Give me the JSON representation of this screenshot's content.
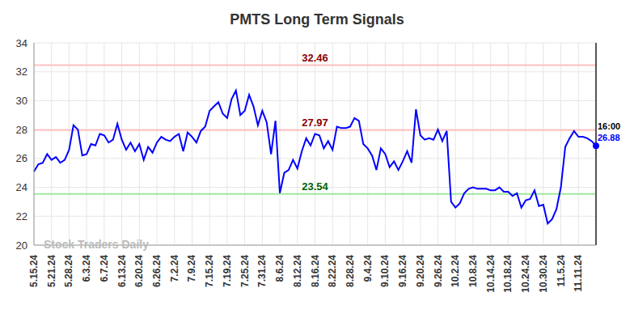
{
  "chart_data": {
    "type": "line",
    "title": "PMTS Long Term Signals",
    "watermark": "Stock Traders Daily",
    "time_label": "16:00",
    "color": "#0000ff",
    "grid": true,
    "ylim": [
      20,
      34
    ],
    "yticks": [
      20,
      22,
      24,
      26,
      28,
      30,
      32,
      34
    ],
    "levels": [
      {
        "value": 32.46,
        "color": "#ffc0c0"
      },
      {
        "value": 27.97,
        "color": "#ffc0c0"
      },
      {
        "value": 23.54,
        "color": "#a0e8a0"
      }
    ],
    "categories": [
      "5.15.24",
      null,
      null,
      null,
      "5.21.24",
      null,
      null,
      null,
      "5.28.24",
      null,
      null,
      null,
      "6.3.24",
      null,
      null,
      null,
      "6.7.24",
      null,
      null,
      null,
      "6.13.24",
      null,
      null,
      null,
      "6.20.24",
      null,
      null,
      null,
      "6.26.24",
      null,
      null,
      null,
      "7.2.24",
      null,
      null,
      null,
      "7.9.24",
      null,
      null,
      null,
      "7.15.24",
      null,
      null,
      null,
      "7.19.24",
      null,
      null,
      null,
      "7.25.24",
      null,
      null,
      null,
      "7.31.24",
      null,
      null,
      null,
      "8.6.24",
      null,
      null,
      null,
      "8.12.24",
      null,
      null,
      null,
      "8.16.24",
      null,
      null,
      null,
      "8.22.24",
      null,
      null,
      null,
      "8.28.24",
      null,
      null,
      null,
      "9.4.24",
      null,
      null,
      null,
      "9.10.24",
      null,
      null,
      null,
      "9.16.24",
      null,
      null,
      null,
      "9.20.24",
      null,
      null,
      null,
      "9.26.24",
      null,
      null,
      null,
      "10.2.24",
      null,
      null,
      null,
      "10.8.24",
      null,
      null,
      null,
      "10.14.24",
      null,
      null,
      null,
      "10.18.24",
      null,
      null,
      null,
      "10.24.24",
      null,
      null,
      null,
      "10.30.24",
      null,
      null,
      null,
      "11.5.24",
      null,
      null,
      null,
      "11.11.24",
      null,
      null,
      null,
      null
    ],
    "values": [
      25.1,
      25.6,
      25.7,
      26.3,
      25.9,
      26.1,
      25.7,
      25.9,
      26.6,
      28.3,
      28.0,
      26.2,
      26.3,
      27.0,
      26.9,
      27.7,
      27.6,
      27.1,
      27.3,
      28.4,
      27.3,
      26.6,
      27.1,
      26.5,
      27.0,
      25.9,
      26.8,
      26.4,
      27.1,
      27.5,
      27.3,
      27.2,
      27.5,
      27.7,
      26.5,
      27.8,
      27.5,
      27.1,
      27.9,
      28.2,
      29.3,
      29.6,
      29.9,
      29.1,
      28.8,
      30.1,
      30.7,
      29.0,
      29.3,
      30.4,
      29.6,
      28.3,
      29.3,
      28.5,
      26.3,
      28.6,
      23.6,
      25.0,
      25.2,
      25.9,
      25.3,
      26.5,
      27.4,
      26.9,
      27.7,
      27.6,
      26.7,
      27.2,
      26.6,
      28.2,
      28.1,
      28.1,
      28.2,
      28.8,
      28.6,
      27.0,
      26.7,
      26.2,
      25.2,
      26.7,
      26.3,
      25.4,
      25.8,
      25.2,
      25.8,
      26.5,
      25.7,
      29.4,
      27.6,
      27.3,
      27.4,
      27.3,
      28.0,
      27.2,
      27.9,
      23.0,
      22.6,
      22.9,
      23.6,
      23.9,
      24.0,
      23.9,
      23.9,
      23.9,
      23.8,
      23.8,
      24.0,
      23.7,
      23.7,
      23.4,
      23.6,
      22.6,
      23.1,
      23.2,
      23.8,
      22.7,
      22.8,
      21.5,
      21.8,
      22.5,
      24.0,
      26.8,
      27.4,
      27.9,
      27.5,
      27.5,
      27.4,
      27.2,
      26.88
    ]
  }
}
